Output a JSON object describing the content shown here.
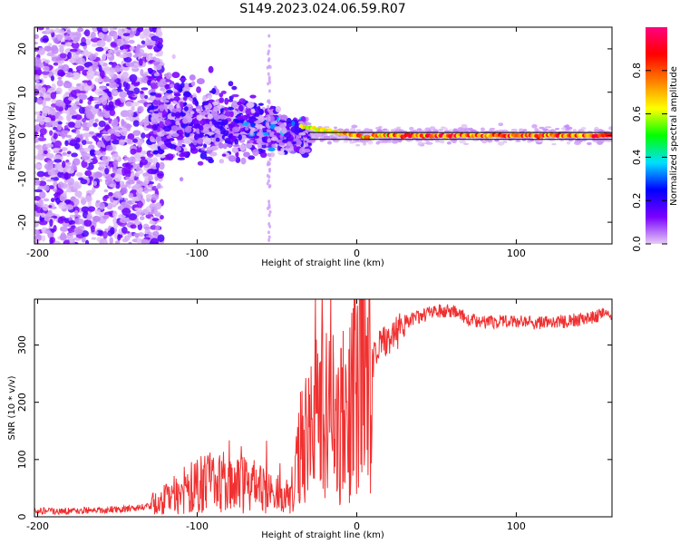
{
  "figure": {
    "title": "S149.2023.024.06.59.R07"
  },
  "chart_data": [
    {
      "type": "heatmap",
      "xlabel": "Height of straight line (km)",
      "ylabel": "Frequency (Hz)",
      "xlim": [
        -202,
        160
      ],
      "ylim": [
        -25,
        25
      ],
      "xticks": [
        -200,
        -100,
        0,
        100
      ],
      "yticks": [
        -20,
        -10,
        0,
        10,
        20
      ],
      "grid": false,
      "ridge_frequency": 0,
      "colorbar": {
        "label": "Normalized spectral amplitude",
        "range": [
          0,
          1
        ],
        "ticks": [
          "0.0",
          "0.2",
          "0.4",
          "0.6",
          "0.8"
        ],
        "tick_values": [
          0.0,
          0.2,
          0.4,
          0.6,
          0.8
        ],
        "colors": [
          "#e6ccf5",
          "#7a00ff",
          "#0000ff",
          "#00e0ff",
          "#00ff00",
          "#ffff00",
          "#ff8000",
          "#ff0000",
          "#ff0080"
        ]
      }
    },
    {
      "type": "line",
      "xlabel": "Height of straight line (km)",
      "ylabel": "SNR (10 * v/v)",
      "xlim": [
        -202,
        160
      ],
      "ylim": [
        0,
        380
      ],
      "xticks": [
        -200,
        -100,
        0,
        100
      ],
      "yticks": [
        0,
        100,
        200,
        300
      ],
      "grid": false,
      "series": [
        {
          "color": "#f03030",
          "x": [
            -202,
            -180,
            -160,
            -140,
            -130,
            -120,
            -110,
            -100,
            -90,
            -80,
            -70,
            -60,
            -50,
            -45,
            -40,
            -35,
            -30,
            -25,
            -20,
            -15,
            -10,
            -5,
            0,
            5,
            10,
            15,
            20,
            25,
            30,
            40,
            50,
            60,
            65,
            70,
            80,
            100,
            120,
            140,
            150,
            160
          ],
          "values": [
            10,
            10,
            12,
            14,
            20,
            30,
            45,
            55,
            60,
            60,
            55,
            50,
            40,
            30,
            50,
            120,
            160,
            170,
            180,
            170,
            180,
            200,
            220,
            250,
            270,
            300,
            310,
            320,
            340,
            350,
            360,
            360,
            355,
            345,
            340,
            340,
            338,
            345,
            350,
            355
          ]
        }
      ]
    }
  ]
}
